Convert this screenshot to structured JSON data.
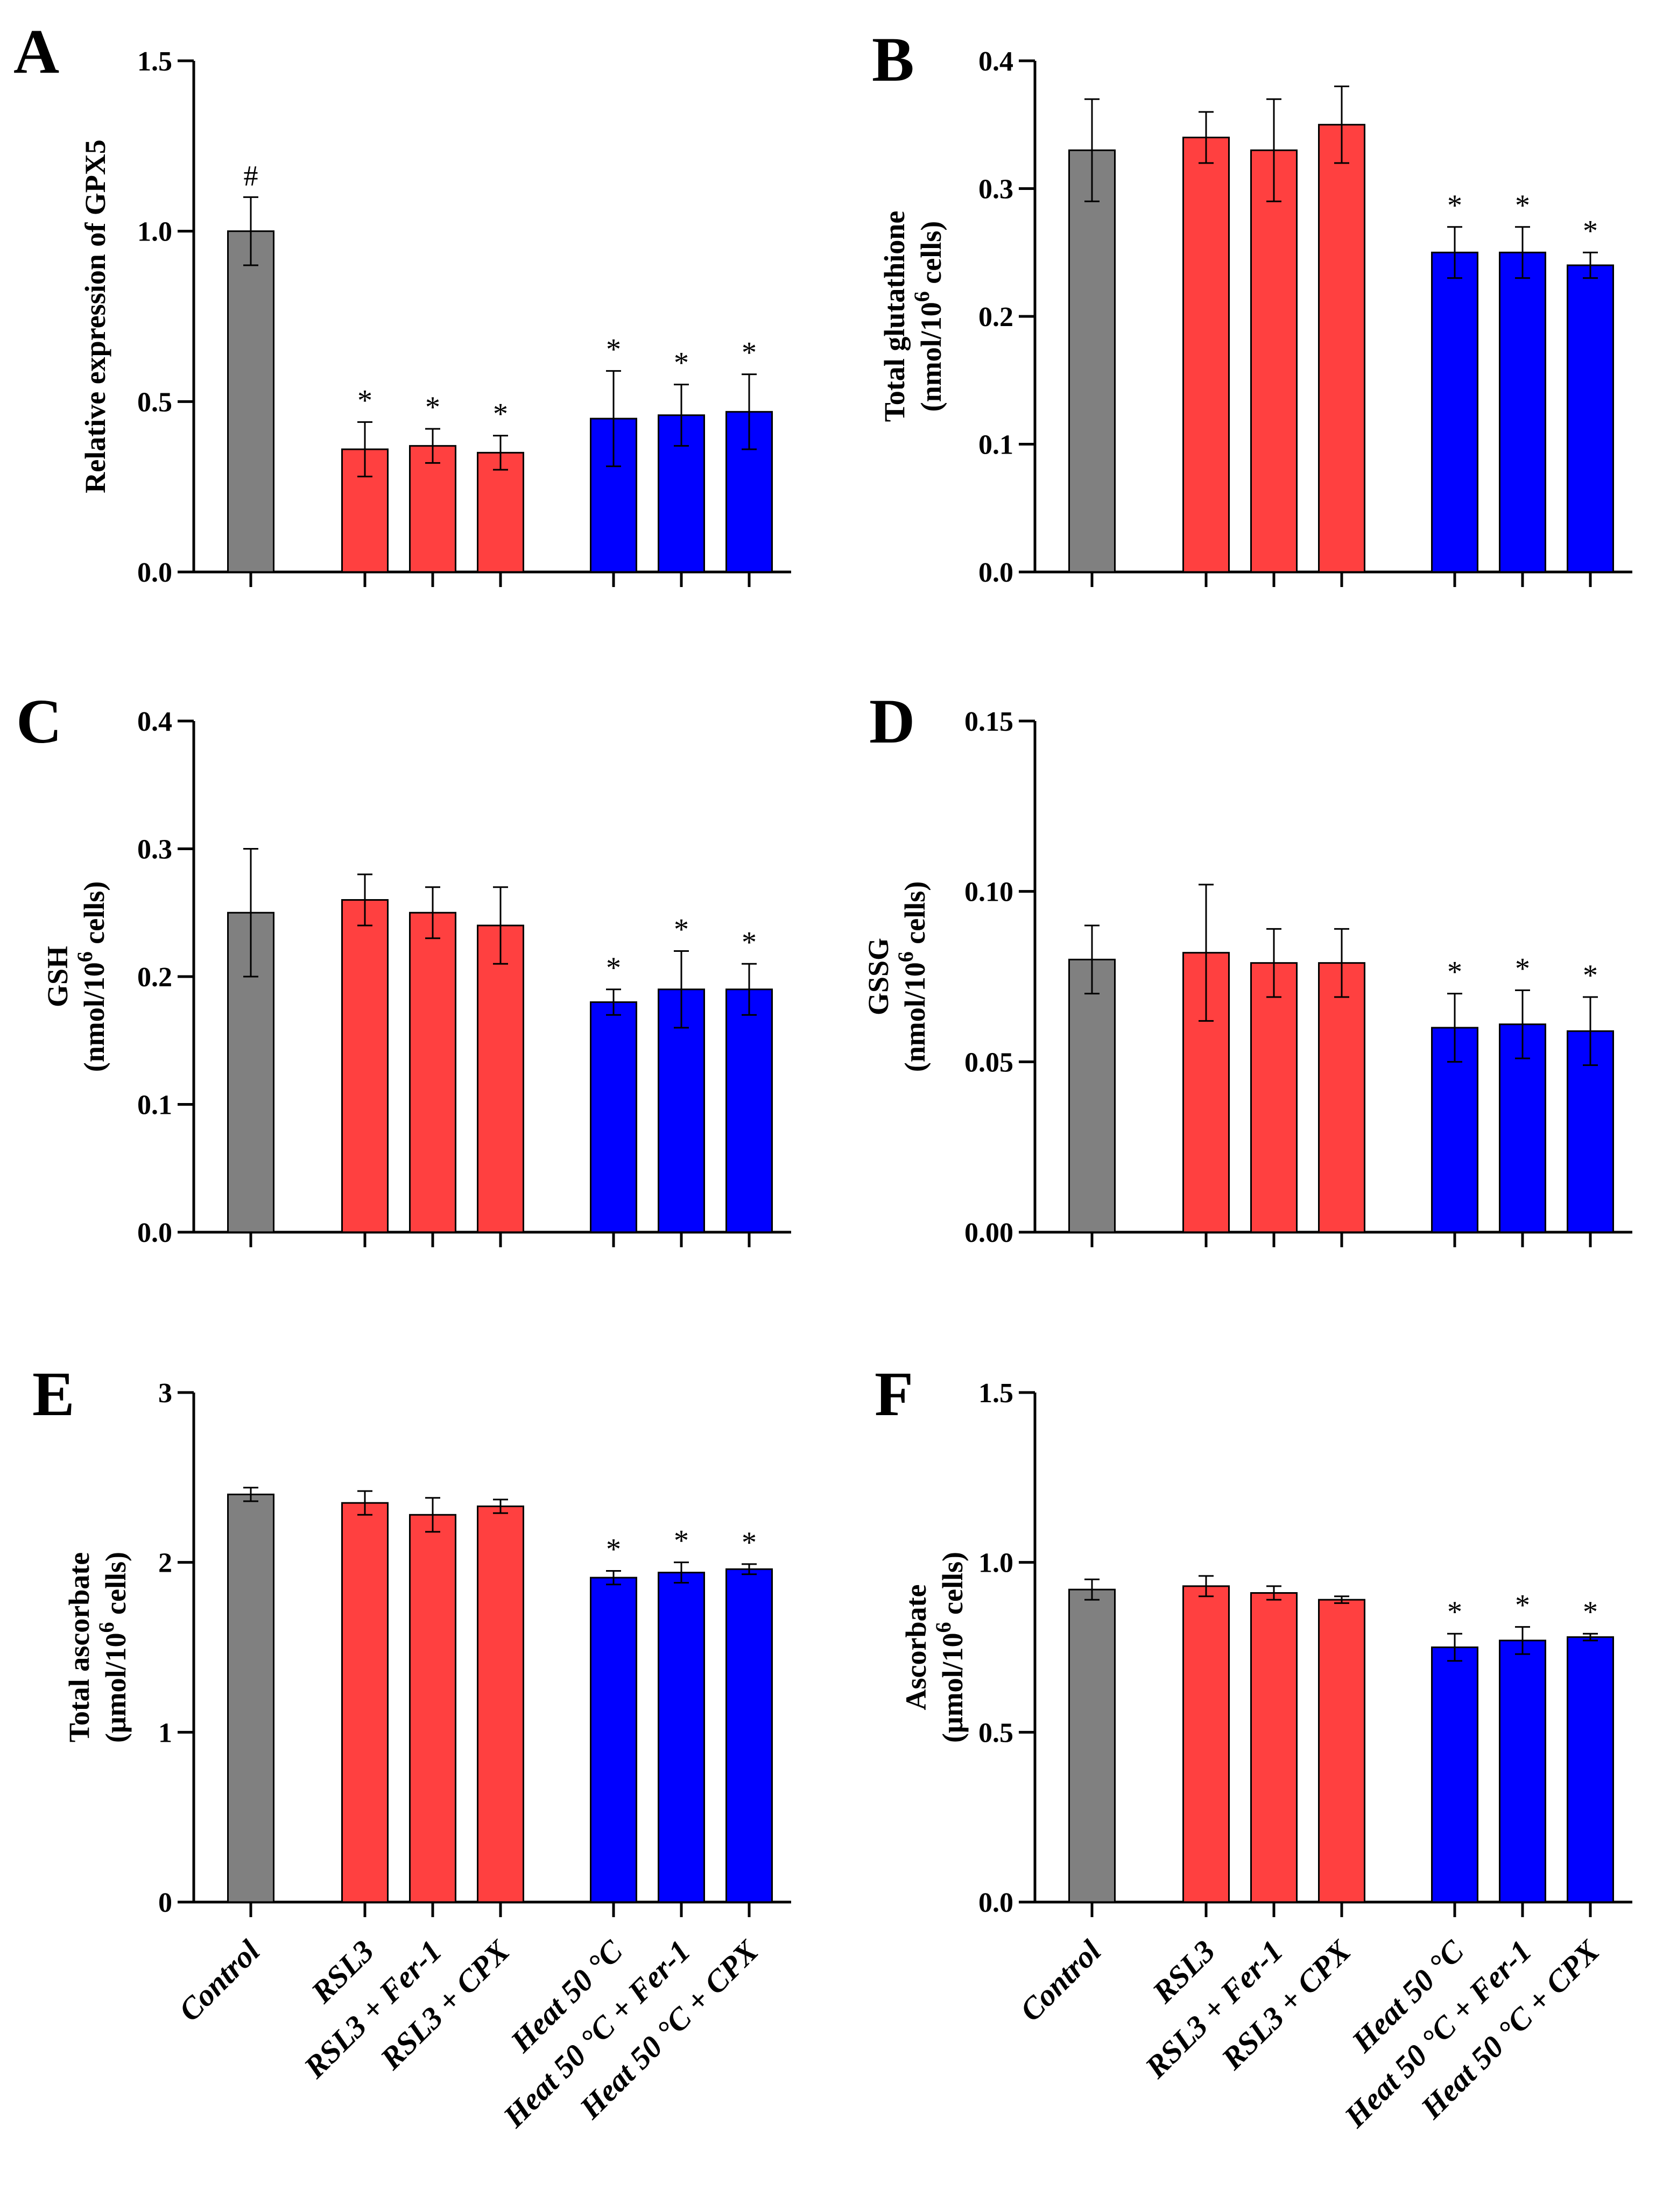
{
  "figure": {
    "categories": [
      "Control",
      "RSL3",
      "RSL3 + Fer-1",
      "RSL3 + CPX",
      "Heat 50 °C",
      "Heat 50 °C + Fer-1",
      "Heat 50 °C + CPX"
    ],
    "colors": {
      "control": "#808080",
      "rsl3": "#ff4040",
      "heat": "#0000ff",
      "axis": "#000000"
    }
  },
  "chart_data": [
    {
      "type": "bar",
      "panel": "A",
      "ylabel": "Relative expression of GPX5",
      "ylim": [
        0,
        1.5
      ],
      "yticks": [
        "0.0",
        "0.5",
        "1.0",
        "1.5"
      ],
      "categories": [
        "Control",
        "RSL3",
        "RSL3 + Fer-1",
        "RSL3 + CPX",
        "Heat 50 °C",
        "Heat 50 °C + Fer-1",
        "Heat 50 °C + CPX"
      ],
      "values": [
        1.0,
        0.36,
        0.37,
        0.35,
        0.45,
        0.46,
        0.47
      ],
      "errors": [
        0.1,
        0.08,
        0.05,
        0.05,
        0.14,
        0.09,
        0.11
      ],
      "annotations": [
        "#",
        "*",
        "*",
        "*",
        "*",
        "*",
        "*"
      ]
    },
    {
      "type": "bar",
      "panel": "B",
      "ylabel": "Total glutathione",
      "ylabel2": "(nmol/10",
      "ylabel2_sup": "6",
      "ylabel2_end": " cells)",
      "ylim": [
        0,
        0.4
      ],
      "yticks": [
        "0.0",
        "0.1",
        "0.2",
        "0.3",
        "0.4"
      ],
      "categories": [
        "Control",
        "RSL3",
        "RSL3 + Fer-1",
        "RSL3 + CPX",
        "Heat 50 °C",
        "Heat 50 °C + Fer-1",
        "Heat 50 °C + CPX"
      ],
      "values": [
        0.33,
        0.34,
        0.33,
        0.35,
        0.25,
        0.25,
        0.24
      ],
      "errors": [
        0.04,
        0.02,
        0.04,
        0.03,
        0.02,
        0.02,
        0.01
      ],
      "annotations": [
        "",
        "",
        "",
        "",
        "*",
        "*",
        "*"
      ]
    },
    {
      "type": "bar",
      "panel": "C",
      "ylabel": "GSH",
      "ylabel2": "(nmol/10",
      "ylabel2_sup": "6",
      "ylabel2_end": " cells)",
      "ylim": [
        0,
        0.4
      ],
      "yticks": [
        "0.0",
        "0.1",
        "0.2",
        "0.3",
        "0.4"
      ],
      "categories": [
        "Control",
        "RSL3",
        "RSL3 + Fer-1",
        "RSL3 + CPX",
        "Heat 50 °C",
        "Heat 50 °C + Fer-1",
        "Heat 50 °C + CPX"
      ],
      "values": [
        0.25,
        0.26,
        0.25,
        0.24,
        0.18,
        0.19,
        0.19
      ],
      "errors": [
        0.05,
        0.02,
        0.02,
        0.03,
        0.01,
        0.03,
        0.02
      ],
      "annotations": [
        "",
        "",
        "",
        "",
        "*",
        "*",
        "*"
      ]
    },
    {
      "type": "bar",
      "panel": "D",
      "ylabel": "GSSG",
      "ylabel2": "(nmol/10",
      "ylabel2_sup": "6",
      "ylabel2_end": " cells)",
      "ylim": [
        0,
        0.15
      ],
      "yticks": [
        "0.00",
        "0.05",
        "0.10",
        "0.15"
      ],
      "categories": [
        "Control",
        "RSL3",
        "RSL3 + Fer-1",
        "RSL3 + CPX",
        "Heat 50 °C",
        "Heat 50 °C + Fer-1",
        "Heat 50 °C + CPX"
      ],
      "values": [
        0.08,
        0.082,
        0.079,
        0.079,
        0.06,
        0.061,
        0.059
      ],
      "errors": [
        0.01,
        0.02,
        0.01,
        0.01,
        0.01,
        0.01,
        0.01
      ],
      "annotations": [
        "",
        "",
        "",
        "",
        "*",
        "*",
        "*"
      ]
    },
    {
      "type": "bar",
      "panel": "E",
      "ylabel": "Total ascorbate",
      "ylabel2": "(μmol/10",
      "ylabel2_sup": "6",
      "ylabel2_end": " cells)",
      "ylim": [
        0,
        3
      ],
      "yticks": [
        "0",
        "1",
        "2",
        "3"
      ],
      "categories": [
        "Control",
        "RSL3",
        "RSL3 + Fer-1",
        "RSL3 + CPX",
        "Heat 50 °C",
        "Heat 50 °C + Fer-1",
        "Heat 50 °C + CPX"
      ],
      "values": [
        2.4,
        2.35,
        2.28,
        2.33,
        1.91,
        1.94,
        1.96
      ],
      "errors": [
        0.04,
        0.07,
        0.1,
        0.04,
        0.04,
        0.06,
        0.03
      ],
      "annotations": [
        "",
        "",
        "",
        "",
        "*",
        "*",
        "*"
      ]
    },
    {
      "type": "bar",
      "panel": "F",
      "ylabel": "Ascorbate",
      "ylabel2": "(μmol/10",
      "ylabel2_sup": "6",
      "ylabel2_end": " cells)",
      "ylim": [
        0,
        1.5
      ],
      "yticks": [
        "0.0",
        "0.5",
        "1.0",
        "1.5"
      ],
      "categories": [
        "Control",
        "RSL3",
        "RSL3 + Fer-1",
        "RSL3 + CPX",
        "Heat 50 °C",
        "Heat 50 °C + Fer-1",
        "Heat 50 °C + CPX"
      ],
      "values": [
        0.92,
        0.93,
        0.91,
        0.89,
        0.75,
        0.77,
        0.78
      ],
      "errors": [
        0.03,
        0.03,
        0.02,
        0.01,
        0.04,
        0.04,
        0.01
      ],
      "annotations": [
        "",
        "",
        "",
        "",
        "*",
        "*",
        "*"
      ]
    }
  ]
}
